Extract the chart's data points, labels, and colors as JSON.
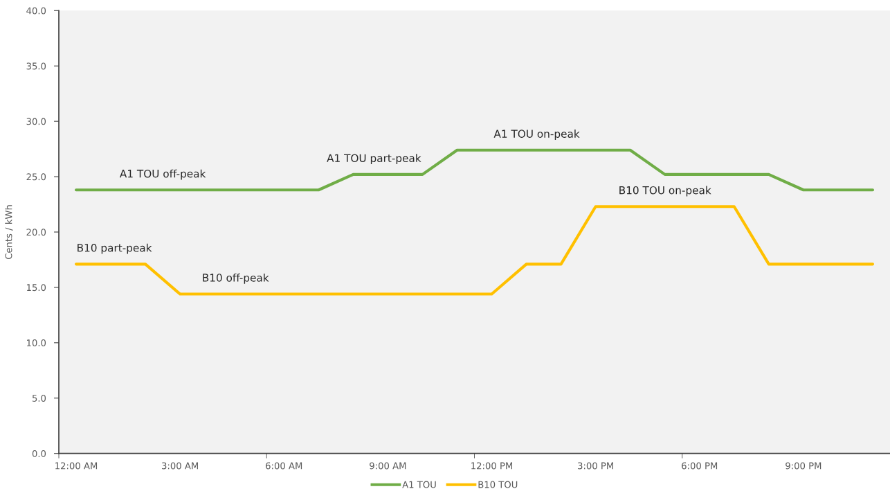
{
  "chart_data": {
    "type": "line",
    "ylabel": "Cents / kWh",
    "x": [
      0,
      1,
      2,
      3,
      4,
      5,
      6,
      7,
      8,
      9,
      10,
      11,
      12,
      13,
      14,
      15,
      16,
      17,
      18,
      19,
      20,
      21,
      22,
      23
    ],
    "series": [
      {
        "name": "A1 TOU",
        "color": "#70ad47",
        "values": [
          23.8,
          23.8,
          23.8,
          23.8,
          23.8,
          23.8,
          23.8,
          23.8,
          25.2,
          25.2,
          25.2,
          27.4,
          27.4,
          27.4,
          27.4,
          27.4,
          27.4,
          25.2,
          25.2,
          25.2,
          25.2,
          23.8,
          23.8,
          23.8
        ]
      },
      {
        "name": "B10 TOU",
        "color": "#ffc000",
        "values": [
          17.1,
          17.1,
          17.1,
          14.4,
          14.4,
          14.4,
          14.4,
          14.4,
          14.4,
          14.4,
          14.4,
          14.4,
          14.4,
          17.1,
          17.1,
          22.3,
          22.3,
          22.3,
          22.3,
          22.3,
          17.1,
          17.1,
          17.1,
          17.1
        ]
      }
    ],
    "xlim": [
      -0.5,
      23.5
    ],
    "xticks": [
      {
        "value": -0.5,
        "label": null
      },
      {
        "value": 0,
        "label": "12:00 AM"
      },
      {
        "value": 3,
        "label": "3:00 AM"
      },
      {
        "value": 5.5,
        "label": null
      },
      {
        "value": 6,
        "label": "6:00 AM"
      },
      {
        "value": 9,
        "label": "9:00 AM"
      },
      {
        "value": 11.5,
        "label": null
      },
      {
        "value": 12,
        "label": "12:00 PM"
      },
      {
        "value": 15,
        "label": "3:00 PM"
      },
      {
        "value": 17.5,
        "label": null
      },
      {
        "value": 18,
        "label": "6:00 PM"
      },
      {
        "value": 21,
        "label": "9:00 PM"
      }
    ],
    "ylim": [
      0,
      40
    ],
    "yticks": [
      {
        "value": 0,
        "label": "0.0"
      },
      {
        "value": 5,
        "label": "5.0"
      },
      {
        "value": 10,
        "label": "10.0"
      },
      {
        "value": 15,
        "label": "15.0"
      },
      {
        "value": 20,
        "label": "20.0"
      },
      {
        "value": 25,
        "label": "25.0"
      },
      {
        "value": 30,
        "label": "30.0"
      },
      {
        "value": 35,
        "label": "35.0"
      },
      {
        "value": 40,
        "label": "40.0"
      }
    ],
    "legend": "bottom",
    "line_style": "solid",
    "annotations": [
      {
        "text": "A1 TOU off-peak",
        "x": 2.5,
        "y": 23.8
      },
      {
        "text": "A1 TOU part-peak",
        "x": 8.6,
        "y": 25.2
      },
      {
        "text": "A1 TOU on-peak",
        "x": 13.3,
        "y": 27.4
      },
      {
        "text": "B10 TOU on-peak",
        "x": 17.0,
        "y": 22.3
      },
      {
        "text": "B10 part-peak",
        "x": 1.1,
        "y": 17.1
      },
      {
        "text": "B10 off-peak",
        "x": 4.6,
        "y": 14.4
      }
    ]
  }
}
